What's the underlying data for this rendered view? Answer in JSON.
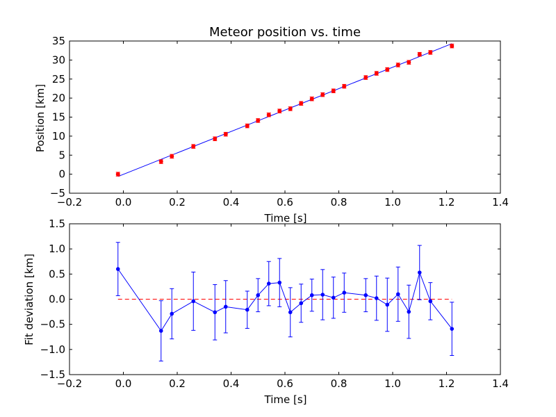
{
  "chart_data": [
    {
      "type": "scatter",
      "title": "Meteor position vs. time",
      "xlabel": "Time [s]",
      "ylabel": "Position [km]",
      "xlim": [
        -0.2,
        1.4
      ],
      "ylim": [
        -5,
        35
      ],
      "xticks": [
        "−0.2",
        "0.0",
        "0.2",
        "0.4",
        "0.6",
        "0.8",
        "1.0",
        "1.2",
        "1.4"
      ],
      "yticks": [
        "−5",
        "0",
        "5",
        "10",
        "15",
        "20",
        "25",
        "30",
        "35"
      ],
      "grid": false,
      "colors": {
        "points": "#ff0000",
        "fit": "#0000ff"
      },
      "series": [
        {
          "kind": "errorbar-points",
          "x": [
            -0.02,
            0.14,
            0.18,
            0.26,
            0.34,
            0.38,
            0.46,
            0.5,
            0.54,
            0.58,
            0.62,
            0.66,
            0.7,
            0.74,
            0.78,
            0.82,
            0.9,
            0.94,
            0.98,
            1.02,
            1.06,
            1.1,
            1.14,
            1.22
          ],
          "y": [
            0.0,
            3.3,
            4.7,
            7.3,
            9.3,
            10.5,
            12.7,
            14.1,
            15.6,
            16.6,
            17.2,
            18.6,
            19.8,
            20.9,
            21.9,
            23.1,
            25.4,
            26.5,
            27.5,
            28.7,
            29.4,
            31.5,
            32.0,
            33.7
          ],
          "yerr": 0.5
        },
        {
          "kind": "fit-line",
          "x": [
            -0.02,
            1.22
          ],
          "y": [
            -0.6,
            34.3
          ]
        }
      ]
    },
    {
      "type": "line",
      "title": "",
      "xlabel": "Time [s]",
      "ylabel": "Fit deviation [km]",
      "xlim": [
        -0.2,
        1.4
      ],
      "ylim": [
        -1.5,
        1.5
      ],
      "xticks": [
        "−0.2",
        "0.0",
        "0.2",
        "0.4",
        "0.6",
        "0.8",
        "1.0",
        "1.2",
        "1.4"
      ],
      "yticks": [
        "−1.5",
        "−1.0",
        "−0.5",
        "0.0",
        "0.5",
        "1.0",
        "1.5"
      ],
      "grid": false,
      "colors": {
        "line": "#0000ff",
        "zero": "#ff0000"
      },
      "series": [
        {
          "kind": "errorbar-line",
          "x": [
            -0.02,
            0.14,
            0.18,
            0.26,
            0.34,
            0.38,
            0.46,
            0.5,
            0.54,
            0.58,
            0.62,
            0.66,
            0.7,
            0.74,
            0.78,
            0.82,
            0.9,
            0.94,
            0.98,
            1.02,
            1.06,
            1.1,
            1.14,
            1.22
          ],
          "y": [
            0.6,
            -0.63,
            -0.29,
            -0.04,
            -0.26,
            -0.15,
            -0.21,
            0.08,
            0.31,
            0.33,
            -0.26,
            -0.08,
            0.08,
            0.09,
            0.03,
            0.13,
            0.08,
            0.02,
            -0.11,
            0.1,
            -0.25,
            0.53,
            -0.04,
            -0.59
          ],
          "yerr": [
            0.53,
            0.6,
            0.5,
            0.58,
            0.55,
            0.52,
            0.37,
            0.33,
            0.44,
            0.48,
            0.49,
            0.38,
            0.32,
            0.5,
            0.41,
            0.39,
            0.33,
            0.44,
            0.53,
            0.54,
            0.53,
            0.54,
            0.37,
            0.53
          ]
        },
        {
          "kind": "zero-line",
          "x": [
            -0.02,
            1.22
          ],
          "y": [
            0,
            0
          ]
        }
      ]
    }
  ]
}
